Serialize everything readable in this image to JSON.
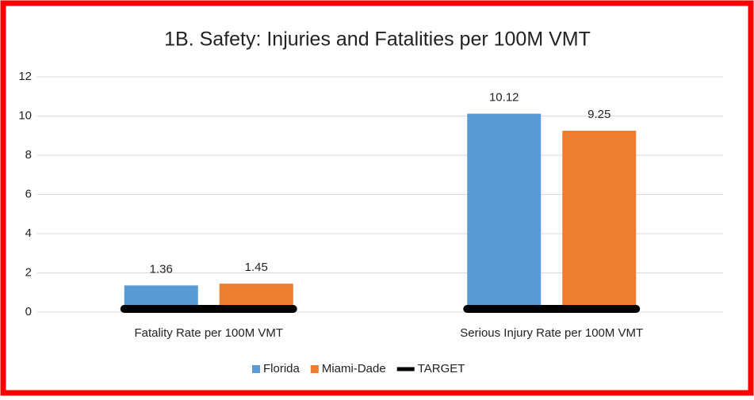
{
  "chart_data": {
    "type": "bar",
    "title": "1B. Safety: Injuries and Fatalities per 100M VMT",
    "categories": [
      "Fatality Rate per 100M VMT",
      "Serious Injury Rate per 100M VMT"
    ],
    "series": [
      {
        "name": "Florida",
        "color": "#5b9bd5",
        "values": [
          1.36,
          10.12
        ]
      },
      {
        "name": "Miami-Dade",
        "color": "#ed7d31",
        "values": [
          1.45,
          9.25
        ]
      },
      {
        "name": "TARGET",
        "color": "#000000",
        "type": "line",
        "values": [
          0,
          0
        ]
      }
    ],
    "ylim": [
      0,
      12
    ],
    "yticks": [
      0,
      2,
      4,
      6,
      8,
      10,
      12
    ],
    "grid": true,
    "data_labels": true,
    "legend": "bottom"
  }
}
